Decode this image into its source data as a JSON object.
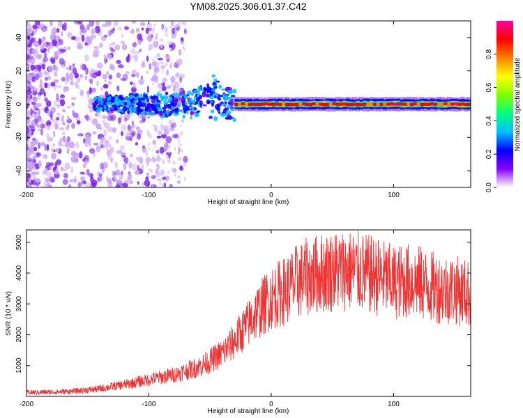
{
  "title": "YM08.2025.306.01.37.C42",
  "chart_data": [
    {
      "type": "heatmap",
      "title": "",
      "xlabel": "Height of straight line (km)",
      "ylabel": "Frequency (Hz)",
      "xlim": [
        -200,
        163
      ],
      "ylim": [
        -50,
        50
      ],
      "xticks": [
        -200,
        -100,
        0,
        100
      ],
      "xtick_labels": [
        "-200",
        "-100",
        "0",
        "100"
      ],
      "yticks": [
        -40,
        -20,
        0,
        20,
        40
      ],
      "ytick_labels": [
        "-40",
        "-20",
        "0",
        "20",
        "40"
      ],
      "colorbar": {
        "label": "Normalized spectral amplitude",
        "range": [
          0,
          1
        ],
        "ticks": [
          0.0,
          0.2,
          0.4,
          0.6,
          0.8
        ],
        "tick_labels": [
          "0.0",
          "0.2",
          "0.4",
          "0.6",
          "0.8"
        ],
        "colormap": [
          "#ffffff",
          "#8800ff",
          "#0000ff",
          "#00c0ff",
          "#00ff80",
          "#80ff00",
          "#ffff00",
          "#ff8000",
          "#ff0000",
          "#ff00a0"
        ]
      },
      "band": {
        "turbulent_region_x": [
          -145,
          -30
        ],
        "stable_region_x": [
          -30,
          163
        ],
        "center_frequency_hz": 0,
        "half_width_hz": 3,
        "peak_amplitude": 0.95
      },
      "grid": false
    },
    {
      "type": "line",
      "title": "",
      "xlabel": "Height of straight line (km)",
      "ylabel": "SNR (10 * v/v)",
      "xlim": [
        -200,
        163
      ],
      "ylim": [
        0,
        5400
      ],
      "xticks": [
        -200,
        -100,
        0,
        100
      ],
      "xtick_labels": [
        "-200",
        "-100",
        "0",
        "100"
      ],
      "yticks": [
        1000,
        2000,
        3000,
        4000,
        5000
      ],
      "ytick_labels": [
        "1000",
        "2000",
        "3000",
        "4000",
        "5000"
      ],
      "series": [
        {
          "name": "SNR",
          "color": "#ee3333",
          "x": [
            -200,
            -180,
            -160,
            -140,
            -120,
            -100,
            -90,
            -80,
            -70,
            -60,
            -50,
            -40,
            -30,
            -20,
            -10,
            0,
            10,
            20,
            30,
            40,
            50,
            60,
            70,
            80,
            90,
            100,
            110,
            120,
            130,
            140,
            150,
            160,
            163
          ],
          "y": [
            130,
            140,
            170,
            250,
            380,
            540,
            620,
            700,
            820,
            950,
            1150,
            1400,
            1800,
            2300,
            2800,
            3200,
            3400,
            3700,
            3900,
            4000,
            4050,
            4100,
            4050,
            3950,
            3850,
            3700,
            3750,
            3700,
            3550,
            3500,
            3450,
            3350,
            3300
          ]
        }
      ],
      "grid": false
    }
  ]
}
